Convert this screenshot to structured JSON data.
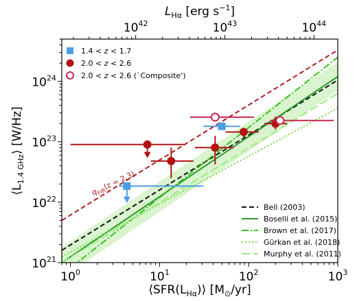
{
  "chart_data": {
    "type": "scatter",
    "title": "",
    "xlabel": "⟨SFR(L_Hα)⟩ [M_⊙/yr]",
    "xlabel_main": "⟨SFR(L",
    "xlabel_sub": "Hα",
    "xlabel_tail": ")⟩ [M",
    "xlabel_sun": "⊙",
    "xlabel_end": "/yr]",
    "ylabel": "⟨L_1.4 GHz⟩ [W/Hz]",
    "ylabel_main": "⟨L",
    "ylabel_sub": "1.4 GHz",
    "ylabel_tail": "⟩ [W/Hz]",
    "top_label": "L_Hα [erg s⁻¹]",
    "top_label_main": "L",
    "top_label_sub": "Hα",
    "top_label_tail": " [erg s",
    "top_label_sup": "−1",
    "top_label_end": "]",
    "x_scale": "log",
    "y_scale": "log",
    "xlim": [
      0.8,
      1000
    ],
    "ylim": [
      1e+21,
      5e+24
    ],
    "x_ticks": [
      {
        "value": 1,
        "base": "10",
        "exp": "0"
      },
      {
        "value": 10,
        "base": "10",
        "exp": "1"
      },
      {
        "value": 100,
        "base": "10",
        "exp": "2"
      },
      {
        "value": 1000,
        "base": "10",
        "exp": "3"
      }
    ],
    "y_ticks": [
      {
        "value": 1e+21,
        "base": "10",
        "exp": "21"
      },
      {
        "value": 1e+22,
        "base": "10",
        "exp": "22"
      },
      {
        "value": 1e+23,
        "base": "10",
        "exp": "23"
      },
      {
        "value": 1e+24,
        "base": "10",
        "exp": "24"
      }
    ],
    "top_ticks": [
      {
        "sfr": 5.4,
        "base": "10",
        "exp": "42"
      },
      {
        "sfr": 54,
        "base": "10",
        "exp": "43"
      },
      {
        "sfr": 540,
        "base": "10",
        "exp": "44"
      }
    ],
    "grid": false,
    "legend_points_placement": "top-left",
    "legend_lines_placement": "bottom-right",
    "point_series": [
      {
        "name": "1.4 < z < 1.7",
        "marker": "square",
        "color": "#4a9ee6",
        "filled": true,
        "points": [
          {
            "x": 4.3,
            "y": 1.85e+22,
            "xerr": [
              3.5,
              31
            ],
            "yerr": [
              1e+22,
              1.85e+22
            ],
            "upper_limit": true
          },
          {
            "x": 50,
            "y": 1.8e+23,
            "xerr": [
              31,
              80
            ],
            "yerr": [
              1.6e+23,
              2.1e+23
            ],
            "upper_limit": false
          }
        ]
      },
      {
        "name": "2.0 < z < 2.6",
        "marker": "circle",
        "color": "#b01414",
        "filled": true,
        "points": [
          {
            "x": 7.3,
            "y": 9e+22,
            "xerr": [
              1.0,
              19
            ],
            "yerr": [
              5.5e+22,
              9e+22
            ],
            "upper_limit": true
          },
          {
            "x": 13.5,
            "y": 4.8e+22,
            "xerr": [
              8,
              24
            ],
            "yerr": [
              2.5e+22,
              8e+22
            ],
            "upper_limit": false
          },
          {
            "x": 42,
            "y": 8e+22,
            "xerr": [
              25,
              68
            ],
            "yerr": [
              4.2e+22,
              1.25e+23
            ],
            "upper_limit": false
          },
          {
            "x": 88,
            "y": 1.45e+23,
            "xerr": [
              55,
              130
            ],
            "yerr": [
              1.2e+23,
              1.7e+23
            ],
            "upper_limit": false
          },
          {
            "x": 200,
            "y": 2e+23,
            "xerr": [
              150,
              270
            ],
            "yerr": [
              1.6e+23,
              2.6e+23
            ],
            "upper_limit": false
          }
        ]
      },
      {
        "name": "2.0 < z < 2.6 (`Composite')",
        "marker": "circle",
        "color": "#c8264f",
        "filled": false,
        "points": [
          {
            "x": 42,
            "y": 2.55e+23,
            "xerr": [
              22,
              115
            ],
            "yerr": [
              2.2e+23,
              3e+23
            ],
            "upper_limit": false
          },
          {
            "x": 225,
            "y": 2.25e+23,
            "xerr": [
              175,
              900
            ],
            "yerr": [
              1.9e+23,
              2.6e+23
            ],
            "upper_limit": false
          }
        ]
      }
    ],
    "point_legend": [
      {
        "label": "1.4 < z < 1.7",
        "parts": [
          {
            "t": "1.4 < "
          },
          {
            "t": "z",
            "i": true
          },
          {
            "t": " < 1.7"
          }
        ]
      },
      {
        "label": "2.0 < z < 2.6",
        "parts": [
          {
            "t": "2.0 < "
          },
          {
            "t": "z",
            "i": true
          },
          {
            "t": " < 2.6"
          }
        ]
      },
      {
        "label": "2.0 < z < 2.6 (`Composite')",
        "parts": [
          {
            "t": "2.0 < "
          },
          {
            "t": "z",
            "i": true
          },
          {
            "t": " < 2.6 (`Composite')"
          }
        ]
      }
    ],
    "line_series": [
      {
        "name": "Bell (2003)",
        "color": "#111111",
        "dash": "7,4",
        "width": 2,
        "x": [
          0.8,
          1000
        ],
        "y": [
          1.6e+21,
          1.05e+24
        ]
      },
      {
        "name": "Boselli et al. (2015)",
        "color": "#2a9a2a",
        "dash": "",
        "width": 2,
        "x": [
          0.8,
          1000
        ],
        "y": [
          1e+21,
          1.2e+24
        ]
      },
      {
        "name": "Brown et al. (2017)",
        "color": "#36c21e",
        "dash": "10,3,2,3",
        "width": 2,
        "x": [
          0.8,
          1000
        ],
        "y": [
          6.3e+20,
          2.5e+24
        ]
      },
      {
        "name": "Gürkan et al. (2018)",
        "color": "#6be040",
        "dash": "2,3",
        "width": 2,
        "x": [
          0.8,
          1000
        ],
        "y": [
          1.25e+21,
          3.6e+23
        ]
      },
      {
        "name": "Murphy et al. (2011)",
        "color": "#9fea80",
        "dash": "12,5",
        "width": 2,
        "x": [
          0.8,
          1000
        ],
        "y": [
          1e+21,
          6.3e+23
        ]
      },
      {
        "name": "",
        "color": "#b01c1c",
        "dash": "7,4",
        "width": 2,
        "x": [
          0.8,
          1000
        ],
        "y": [
          5e+21,
          3.3e+24
        ]
      }
    ],
    "band": {
      "color": "#cdf0bf",
      "x": [
        0.8,
        1000
      ],
      "y_low": [
        5.5e+20,
        7e+23
      ],
      "y_high": [
        1.8e+21,
        2.1e+24
      ]
    },
    "line_legend": [
      "Bell (2003)",
      "Boselli et al. (2015)",
      "Brown et al. (2017)",
      "Gürkan et al. (2018)",
      "Murphy et al. (2011)"
    ],
    "annotation": {
      "text": "q_FIR(z = 2.3)",
      "main": "q",
      "sub": "FIR",
      "tail": "(z = 2.3)",
      "color": "#b01c1c",
      "x": 1.8,
      "y": 1.3e+22,
      "angle_deg": -25
    }
  }
}
